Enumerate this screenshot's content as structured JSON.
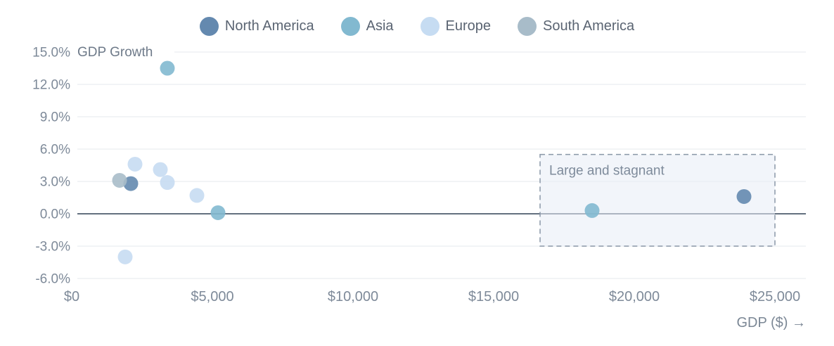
{
  "chart_data": {
    "type": "scatter",
    "title": "GDP Growth",
    "xlabel": "GDP ($) →",
    "ylabel": "GDP Growth",
    "xlim": [
      0,
      26100
    ],
    "ylim": [
      -6,
      15
    ],
    "grid": "horizontal",
    "legend_position": "top",
    "zero_line": true,
    "x_ticks": [
      {
        "value": 0,
        "label": "$0"
      },
      {
        "value": 5000,
        "label": "$5,000"
      },
      {
        "value": 10000,
        "label": "$10,000"
      },
      {
        "value": 15000,
        "label": "$15,000"
      },
      {
        "value": 20000,
        "label": "$20,000"
      },
      {
        "value": 25000,
        "label": "$25,000"
      }
    ],
    "y_ticks": [
      {
        "value": 15,
        "label": "15.0%"
      },
      {
        "value": 12,
        "label": "12.0%"
      },
      {
        "value": 9,
        "label": "9.0%"
      },
      {
        "value": 6,
        "label": "6.0%"
      },
      {
        "value": 3,
        "label": "3.0%"
      },
      {
        "value": 0,
        "label": "0.0%"
      },
      {
        "value": -3,
        "label": "-3.0%"
      },
      {
        "value": -6,
        "label": "-6.0%"
      }
    ],
    "series": [
      {
        "name": "North America",
        "color": "#6489af",
        "points": [
          {
            "gdp": 2100,
            "growth": 2.8
          },
          {
            "gdp": 23900,
            "growth": 1.6
          }
        ]
      },
      {
        "name": "Asia",
        "color": "#82b9d0",
        "points": [
          {
            "gdp": 3400,
            "growth": 13.5
          },
          {
            "gdp": 5200,
            "growth": 0.1
          },
          {
            "gdp": 18500,
            "growth": 0.3
          }
        ]
      },
      {
        "name": "Europe",
        "color": "#c6dcf2",
        "points": [
          {
            "gdp": 1900,
            "growth": -4.0
          },
          {
            "gdp": 2250,
            "growth": 4.6
          },
          {
            "gdp": 3150,
            "growth": 4.1
          },
          {
            "gdp": 3400,
            "growth": 2.9
          },
          {
            "gdp": 4450,
            "growth": 1.7
          }
        ]
      },
      {
        "name": "South America",
        "color": "#a8bcc9",
        "points": [
          {
            "gdp": 1700,
            "growth": 3.1
          }
        ]
      }
    ],
    "annotation": {
      "label": "Large and stagnant",
      "x_range": [
        16650,
        25000
      ],
      "y_range": [
        -3.0,
        5.5
      ],
      "fill": "#e7edf6",
      "border_color": "#8997a7"
    },
    "colors": {
      "gridline": "#e6e8ec",
      "zero_line": "#64707f",
      "tick_label": "#7e8a99",
      "legend_text": "#5a6472",
      "annotation_text": "#7e8b9b"
    }
  }
}
